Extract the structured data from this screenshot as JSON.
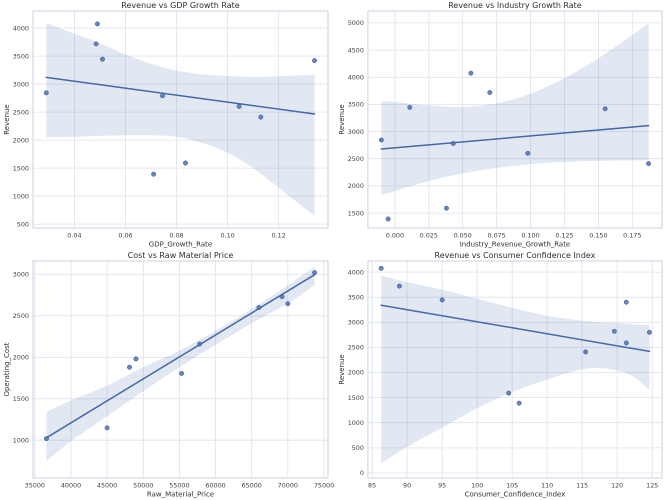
{
  "style": {
    "background": "#ffffff",
    "accent": "#4c72b0",
    "point_fill": "#4c72b0",
    "point_edge": "#31538f",
    "line_color": "#4468a8",
    "band_fill": "rgba(76,114,176,0.16)",
    "grid_color": "#dde2ec",
    "spine_color": "#ccd2df",
    "title_color": "#2e2e2e",
    "tick_color": "#3f3f3f"
  },
  "chart_data": [
    {
      "type": "scatter",
      "title": "Revenue vs GDP Growth Rate",
      "xlabel": "GDP_Growth_Rate",
      "ylabel": "Revenue",
      "xlim": [
        0.0238,
        0.1393
      ],
      "ylim": [
        430,
        4305
      ],
      "xticks": [
        0.04,
        0.06,
        0.08,
        0.1,
        0.12
      ],
      "xtick_labels": [
        "0.04",
        "0.06",
        "0.08",
        "0.10",
        "0.12"
      ],
      "yticks": [
        500,
        1000,
        1500,
        2000,
        2500,
        3000,
        3500,
        4000
      ],
      "ytick_labels": [
        "500",
        "1000",
        "1500",
        "2000",
        "2500",
        "3000",
        "3500",
        "4000"
      ],
      "grid": true,
      "legend": null,
      "points": [
        [
          0.029,
          2845
        ],
        [
          0.0485,
          3720
        ],
        [
          0.049,
          4075
        ],
        [
          0.051,
          3445
        ],
        [
          0.071,
          1390
        ],
        [
          0.0745,
          2790
        ],
        [
          0.0835,
          1590
        ],
        [
          0.1045,
          2600
        ],
        [
          0.113,
          2410
        ],
        [
          0.134,
          3420
        ]
      ],
      "regression": {
        "x": [
          0.029,
          0.134
        ],
        "y": [
          3120,
          2465
        ]
      },
      "ci_band": {
        "x": [
          0.029,
          0.04,
          0.05,
          0.06,
          0.07,
          0.08,
          0.09,
          0.1,
          0.11,
          0.12,
          0.134
        ],
        "upper": [
          4090,
          3900,
          3730,
          3530,
          3360,
          3240,
          3175,
          3145,
          3130,
          3140,
          3170
        ],
        "lower": [
          2050,
          2060,
          2075,
          2085,
          2085,
          2060,
          1950,
          1775,
          1500,
          1150,
          645
        ]
      }
    },
    {
      "type": "scatter",
      "title": "Revenue vs Industry Growth Rate",
      "xlabel": "Industry_Revenue_Growth_Rate",
      "ylabel": "Revenue",
      "xlim": [
        -0.0199,
        0.1969
      ],
      "ylim": [
        1225,
        5220
      ],
      "xticks": [
        0.0,
        0.025,
        0.05,
        0.075,
        0.1,
        0.125,
        0.15,
        0.175
      ],
      "xtick_labels": [
        "0.000",
        "0.025",
        "0.050",
        "0.075",
        "0.100",
        "0.125",
        "0.150",
        "0.175"
      ],
      "yticks": [
        1500,
        2000,
        2500,
        3000,
        3500,
        4000,
        4500,
        5000
      ],
      "ytick_labels": [
        "1500",
        "2000",
        "2500",
        "3000",
        "3500",
        "4000",
        "4500",
        "5000"
      ],
      "grid": true,
      "legend": null,
      "points": [
        [
          -0.01,
          2845
        ],
        [
          -0.005,
          1390
        ],
        [
          0.011,
          3445
        ],
        [
          0.038,
          1590
        ],
        [
          0.043,
          2780
        ],
        [
          0.056,
          4075
        ],
        [
          0.07,
          3720
        ],
        [
          0.098,
          2600
        ],
        [
          0.155,
          3420
        ],
        [
          0.187,
          2410
        ]
      ],
      "regression": {
        "x": [
          -0.01,
          0.187
        ],
        "y": [
          2680,
          3110
        ]
      },
      "ci_band": {
        "x": [
          -0.01,
          0.0,
          0.025,
          0.05,
          0.075,
          0.1,
          0.125,
          0.15,
          0.175,
          0.187
        ],
        "upper": [
          3560,
          3545,
          3480,
          3455,
          3520,
          3700,
          3985,
          4350,
          4780,
          5000
        ],
        "lower": [
          1835,
          1905,
          2090,
          2230,
          2330,
          2400,
          2440,
          2460,
          2470,
          2470
        ]
      }
    },
    {
      "type": "scatter",
      "title": "Cost vs Raw Material Price",
      "xlabel": "Raw_Material_Price",
      "ylabel": "Operating_Cost",
      "xlim": [
        34745,
        75555
      ],
      "ylim": [
        545,
        3160
      ],
      "xticks": [
        35000,
        40000,
        45000,
        50000,
        55000,
        60000,
        65000,
        70000,
        75000
      ],
      "xtick_labels": [
        "35000",
        "40000",
        "45000",
        "50000",
        "55000",
        "60000",
        "65000",
        "70000",
        "75000"
      ],
      "yticks": [
        1000,
        1500,
        2000,
        2500,
        3000
      ],
      "ytick_labels": [
        "1000",
        "1500",
        "2000",
        "2500",
        "3000"
      ],
      "grid": true,
      "legend": null,
      "points": [
        [
          36600,
          1020
        ],
        [
          45000,
          1150
        ],
        [
          48100,
          1880
        ],
        [
          49000,
          1980
        ],
        [
          55300,
          1805
        ],
        [
          57800,
          2160
        ],
        [
          66000,
          2600
        ],
        [
          69200,
          2730
        ],
        [
          70000,
          2645
        ],
        [
          73700,
          3020
        ]
      ],
      "regression": {
        "x": [
          36600,
          73700
        ],
        "y": [
          1030,
          2995
        ]
      },
      "ci_band": {
        "x": [
          36600,
          40000,
          45000,
          50000,
          55000,
          60000,
          65000,
          70000,
          73700
        ],
        "upper": [
          1340,
          1480,
          1660,
          1880,
          2080,
          2320,
          2580,
          2870,
          3090
        ],
        "lower": [
          745,
          990,
          1290,
          1590,
          1880,
          2150,
          2410,
          2650,
          2870
        ]
      }
    },
    {
      "type": "scatter",
      "title": "Revenue vs Consumer Confidence Index",
      "xlabel": "Consumer_Confidence_Index",
      "ylabel": "Revenue",
      "xlim": [
        84.4,
        126.4
      ],
      "ylim": [
        -100,
        4220
      ],
      "xticks": [
        85,
        90,
        95,
        100,
        105,
        110,
        115,
        120,
        125
      ],
      "xtick_labels": [
        "85",
        "90",
        "95",
        "100",
        "105",
        "110",
        "115",
        "120",
        "125"
      ],
      "yticks": [
        0,
        500,
        1000,
        1500,
        2000,
        2500,
        3000,
        3500,
        4000
      ],
      "ytick_labels": [
        "0",
        "500",
        "1000",
        "1500",
        "2000",
        "2500",
        "3000",
        "3500",
        "4000"
      ],
      "grid": true,
      "legend": null,
      "points": [
        [
          86.3,
          4075
        ],
        [
          88.9,
          3720
        ],
        [
          95.0,
          3445
        ],
        [
          104.5,
          1590
        ],
        [
          106.0,
          1390
        ],
        [
          115.5,
          2410
        ],
        [
          119.6,
          2820
        ],
        [
          121.3,
          3400
        ],
        [
          121.3,
          2590
        ],
        [
          124.6,
          2800
        ]
      ],
      "regression": {
        "x": [
          86.3,
          124.6
        ],
        "y": [
          3340,
          2420
        ]
      },
      "ci_band": {
        "x": [
          86.3,
          90,
          95,
          100,
          105,
          110,
          114,
          117,
          120,
          122.5,
          124.6
        ],
        "upper": [
          3930,
          3800,
          3650,
          3470,
          3290,
          3130,
          3050,
          3000,
          2985,
          2960,
          2950
        ],
        "lower": [
          190,
          520,
          900,
          1290,
          1610,
          1860,
          2030,
          2090,
          2040,
          1900,
          1650
        ]
      }
    }
  ]
}
